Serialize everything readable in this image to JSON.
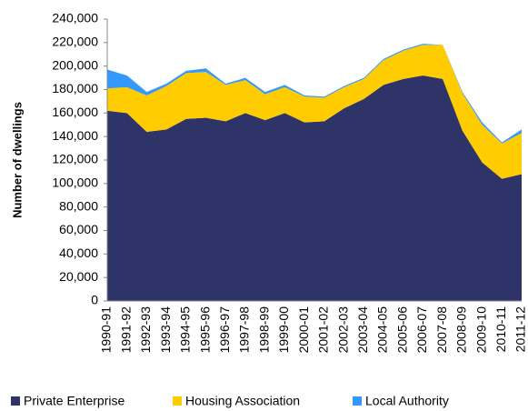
{
  "chart_data": {
    "type": "stacked_area",
    "y_label": "Number of dwellings",
    "categories": [
      "1990-91",
      "1991-92",
      "1992-93",
      "1993-94",
      "1994-95",
      "1995-96",
      "1996-97",
      "1997-98",
      "1998-99",
      "1999-00",
      "2000-01",
      "2001-02",
      "2002-03",
      "2003-04",
      "2004-05",
      "2005-06",
      "2006-07",
      "2007-08",
      "2008-09",
      "2009-10",
      "2010-11",
      "2011-12"
    ],
    "series": [
      {
        "name": "Private Enterprise",
        "color": "#2e3468",
        "values": [
          162000,
          160000,
          144000,
          146000,
          155000,
          156000,
          153000,
          160000,
          154000,
          160000,
          152000,
          153000,
          164000,
          172000,
          184000,
          189000,
          192000,
          189000,
          145000,
          118000,
          104000,
          108000
        ]
      },
      {
        "name": "Housing Association",
        "color": "#ffcc00",
        "values": [
          19000,
          22000,
          31000,
          37000,
          39000,
          39000,
          31000,
          28000,
          22000,
          22000,
          22000,
          20000,
          18000,
          17000,
          21000,
          24000,
          26000,
          29000,
          32000,
          32000,
          30000,
          35000
        ]
      },
      {
        "name": "Local Authority",
        "color": "#3399ff",
        "values": [
          16000,
          10000,
          3000,
          2000,
          2000,
          3000,
          1000,
          2000,
          2000,
          2000,
          1000,
          1000,
          1000,
          1000,
          1000,
          1000,
          1000,
          0,
          1000,
          2000,
          1000,
          3000
        ]
      }
    ],
    "ylim": [
      0,
      240000
    ],
    "yticks": [
      0,
      {
        "value": 20000,
        "label": "20,000"
      },
      {
        "value": 40000,
        "label": "40,000"
      },
      {
        "value": 60000,
        "label": "60,000"
      },
      {
        "value": 80000,
        "label": "80,000"
      },
      {
        "value": 100000,
        "label": "100,000"
      },
      {
        "value": 120000,
        "label": "120,000"
      },
      {
        "value": 140000,
        "label": "140,000"
      },
      {
        "value": 160000,
        "label": "160,000"
      },
      {
        "value": 180000,
        "label": "180,000"
      },
      {
        "value": 200000,
        "label": "200,000"
      },
      {
        "value": 220000,
        "label": "220,000"
      },
      {
        "value": 240000,
        "label": "240,000"
      }
    ],
    "grid": false,
    "legend": "bottom"
  }
}
